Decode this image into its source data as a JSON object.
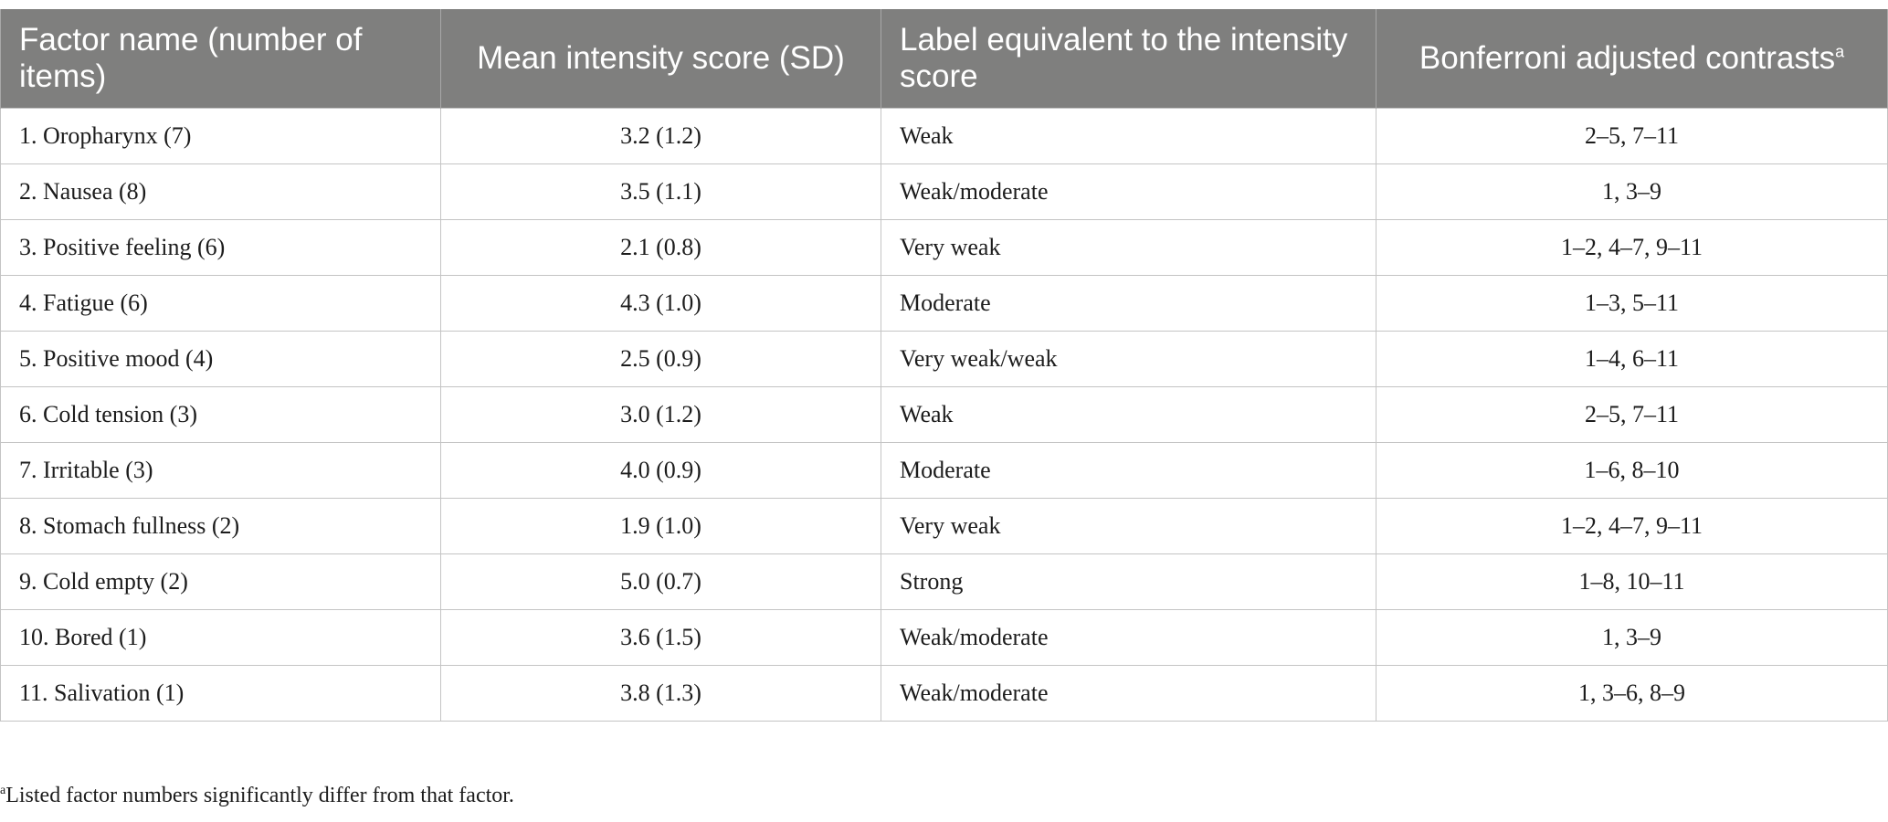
{
  "table": {
    "headers": [
      {
        "label": "Factor name (number of items)",
        "sup": ""
      },
      {
        "label": "Mean intensity score (SD)",
        "sup": ""
      },
      {
        "label": "Label equivalent to the intensity score",
        "sup": ""
      },
      {
        "label": "Bonferroni adjusted contrasts",
        "sup": "a"
      }
    ],
    "rows": [
      [
        "1. Oropharynx (7)",
        "3.2 (1.2)",
        "Weak",
        "2–5, 7–11"
      ],
      [
        "2. Nausea (8)",
        "3.5 (1.1)",
        "Weak/moderate",
        "1, 3–9"
      ],
      [
        "3. Positive feeling (6)",
        "2.1 (0.8)",
        "Very weak",
        "1–2, 4–7, 9–11"
      ],
      [
        "4. Fatigue (6)",
        "4.3 (1.0)",
        "Moderate",
        "1–3, 5–11"
      ],
      [
        "5. Positive mood (4)",
        "2.5 (0.9)",
        "Very weak/weak",
        "1–4, 6–11"
      ],
      [
        "6. Cold tension (3)",
        "3.0 (1.2)",
        "Weak",
        "2–5, 7–11"
      ],
      [
        "7. Irritable (3)",
        "4.0 (0.9)",
        "Moderate",
        "1–6, 8–10"
      ],
      [
        "8. Stomach fullness (2)",
        "1.9 (1.0)",
        "Very weak",
        "1–2, 4–7, 9–11"
      ],
      [
        "9. Cold empty (2)",
        "5.0 (0.7)",
        "Strong",
        "1–8, 10–11"
      ],
      [
        "10. Bored (1)",
        "3.6 (1.5)",
        "Weak/moderate",
        "1, 3–9"
      ],
      [
        "11. Salivation (1)",
        "3.8 (1.3)",
        "Weak/moderate",
        "1, 3–6, 8–9"
      ]
    ]
  },
  "footnote": {
    "marker": "a",
    "text": "Listed factor numbers significantly differ from that factor."
  },
  "colors": {
    "header_background": "#7f7f7e",
    "header_text": "#ffffff",
    "grid_lines": "#c4c4c4"
  }
}
